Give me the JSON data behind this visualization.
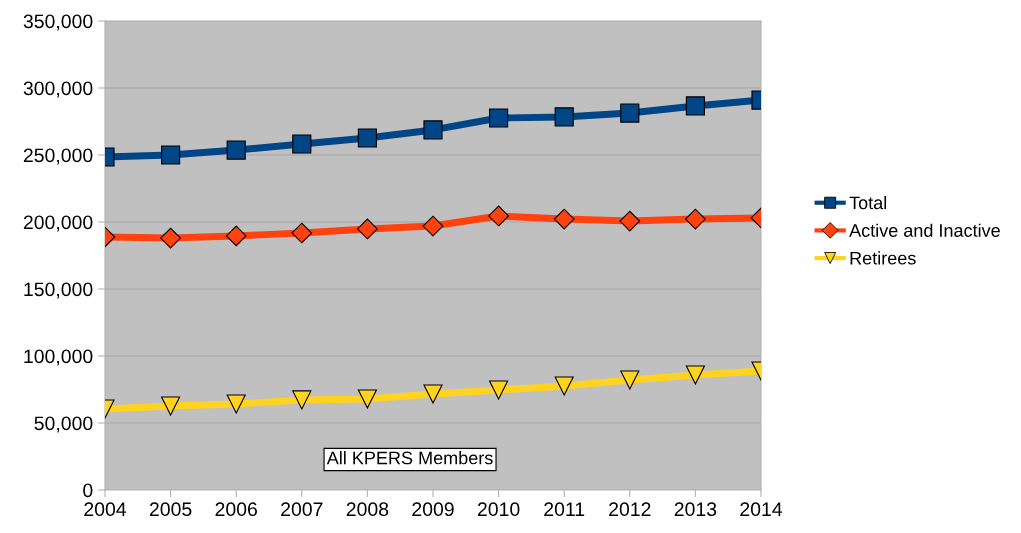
{
  "chart_data": {
    "type": "line",
    "x": [
      2004,
      2005,
      2006,
      2007,
      2008,
      2009,
      2010,
      2011,
      2012,
      2013,
      2014
    ],
    "xlim": [
      2004,
      2014
    ],
    "xticks": [
      2004,
      2005,
      2006,
      2007,
      2008,
      2009,
      2010,
      2011,
      2012,
      2013,
      2014
    ],
    "ylim": [
      0,
      350000
    ],
    "yticks": [
      {
        "value": 0,
        "label": "0"
      },
      {
        "value": 50000,
        "label": "50,000"
      },
      {
        "value": 100000,
        "label": "100,000"
      },
      {
        "value": 150000,
        "label": "150,000"
      },
      {
        "value": 200000,
        "label": "200,000"
      },
      {
        "value": 250000,
        "label": "250,000"
      },
      {
        "value": 300000,
        "label": "300,000"
      },
      {
        "value": 350000,
        "label": "350,000"
      }
    ],
    "grid": "y",
    "legend": "right",
    "annotations": [
      "All KPERS Members"
    ],
    "series": [
      {
        "name": "Total",
        "color": "#004586",
        "marker": "square",
        "values": [
          248500,
          250000,
          253700,
          258200,
          262700,
          268700,
          277600,
          278400,
          281300,
          286600,
          291000
        ]
      },
      {
        "name": "Active and Inactive",
        "color": "#ff420e",
        "marker": "diamond",
        "values": [
          188800,
          188000,
          189600,
          191800,
          194800,
          197000,
          204500,
          202200,
          200700,
          202200,
          203000
        ]
      },
      {
        "name": "Retirees",
        "color": "#ffd320",
        "marker": "triangle",
        "values": [
          60400,
          62700,
          64200,
          67200,
          67900,
          71600,
          74600,
          77600,
          82100,
          85800,
          88800
        ]
      }
    ]
  }
}
